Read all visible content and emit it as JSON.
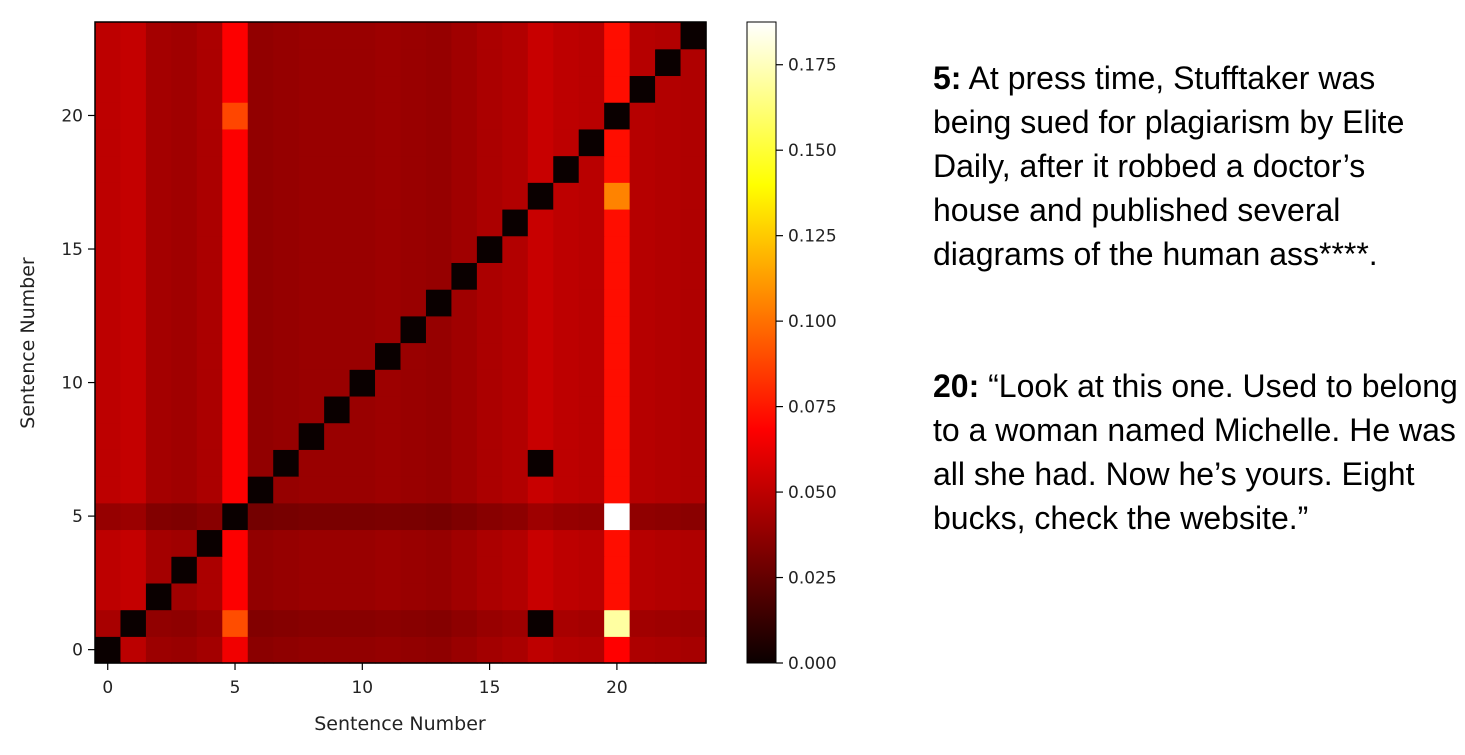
{
  "chart_data": [
    {
      "type": "heatmap",
      "xlabel": "Sentence Number",
      "ylabel": "Sentence Number",
      "x_ticks": [
        "0",
        "5",
        "10",
        "15",
        "20"
      ],
      "y_ticks": [
        "0",
        "5",
        "10",
        "15",
        "20"
      ],
      "n": 24,
      "colormap": "hot",
      "colorbar": {
        "range": [
          0,
          0.1875
        ],
        "ticks": [
          "0.000",
          "0.025",
          "0.050",
          "0.075",
          "0.100",
          "0.125",
          "0.150",
          "0.175"
        ]
      },
      "diagonal_value": 0.0,
      "background_values": [
        0.05,
        0.052,
        0.043,
        0.042,
        0.045,
        0.068,
        0.038,
        0.039,
        0.04,
        0.04,
        0.04,
        0.041,
        0.04,
        0.039,
        0.042,
        0.045,
        0.047,
        0.053,
        0.05,
        0.049,
        0.072,
        0.048,
        0.047,
        0.046
      ],
      "row_factors": [
        0.95,
        0.88,
        1.0,
        1.0,
        1.0,
        0.78,
        1.0,
        1.0,
        1.0,
        1.0,
        1.0,
        1.0,
        1.0,
        1.0,
        1.0,
        1.0,
        1.0,
        1.0,
        1.0,
        1.0,
        1.0,
        1.0,
        1.0,
        1.0
      ],
      "highlights": [
        {
          "row": 20,
          "col": 5,
          "value": 0.088
        },
        {
          "row": 1,
          "col": 5,
          "value": 0.09
        },
        {
          "row": 17,
          "col": 20,
          "value": 0.105
        },
        {
          "row": 5,
          "col": 20,
          "value": 0.1875
        },
        {
          "row": 1,
          "col": 20,
          "value": 0.17
        },
        {
          "row": 7,
          "col": 17,
          "value": 0.0
        },
        {
          "row": 1,
          "col": 17,
          "value": 0.0
        }
      ]
    }
  ],
  "quotes": [
    {
      "num": "5:",
      "text": "At press time, Stufftaker was being sued for plagiarism by Elite Daily, after it robbed a doctor’s house and published several diagrams of the human ass****."
    },
    {
      "num": "20:",
      "text": "“Look at this one. Used to belong to a woman named Michelle. He was all she had. Now he’s yours. Eight bucks, check the website.”"
    }
  ]
}
